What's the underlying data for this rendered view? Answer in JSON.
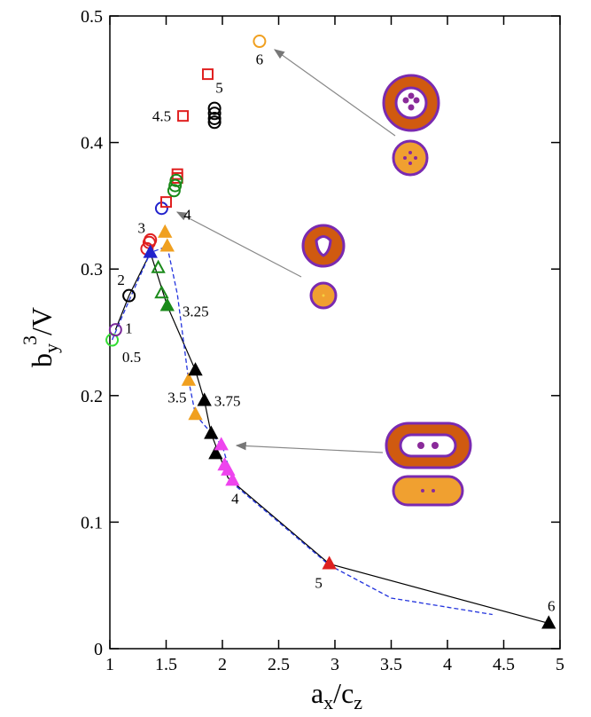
{
  "chart_data": {
    "type": "scatter",
    "xlabel": [
      "a",
      "x",
      "/c",
      "z"
    ],
    "ylabel": [
      "b",
      "y",
      "3",
      "/V"
    ],
    "xlim": [
      1,
      5
    ],
    "ylim": [
      0,
      0.5
    ],
    "xticks": [
      1,
      1.5,
      2,
      2.5,
      3,
      3.5,
      4,
      4.5,
      5
    ],
    "yticks": [
      0,
      0.1,
      0.2,
      0.3,
      0.4,
      0.5
    ],
    "series": [
      {
        "marker": "circle",
        "filled": false,
        "color": "#33dd33",
        "x": [
          1.02
        ],
        "y": [
          0.244
        ],
        "labels": [
          "0.5"
        ]
      },
      {
        "marker": "circle",
        "filled": false,
        "color": "#7a2a9a",
        "x": [
          1.05
        ],
        "y": [
          0.252
        ],
        "labels": [
          "1"
        ]
      },
      {
        "marker": "circle",
        "filled": false,
        "color": "#000000",
        "x": [
          1.17,
          1.93,
          1.93,
          1.93,
          1.93
        ],
        "y": [
          0.279,
          0.427,
          0.423,
          0.419,
          0.416
        ],
        "labels": [
          "2",
          null,
          null,
          null,
          null
        ]
      },
      {
        "marker": "circle",
        "filled": false,
        "color": "#e02020",
        "x": [
          1.33,
          1.35,
          1.36
        ],
        "y": [
          0.316,
          0.321,
          0.323
        ],
        "labels": [
          null,
          null,
          "3"
        ]
      },
      {
        "marker": "circle",
        "filled": false,
        "color": "#2222cc",
        "x": [
          1.46
        ],
        "y": [
          0.348
        ],
        "labels": [
          null
        ]
      },
      {
        "marker": "square",
        "filled": false,
        "color": "#e02020",
        "x": [
          1.5,
          1.6,
          1.6,
          1.65,
          1.87
        ],
        "y": [
          0.353,
          0.372,
          0.375,
          0.421,
          0.454
        ],
        "labels": [
          "4",
          null,
          null,
          "4.5",
          "5"
        ]
      },
      {
        "marker": "circle",
        "filled": false,
        "color": "#1a8a1a",
        "x": [
          1.57,
          1.58,
          1.59
        ],
        "y": [
          0.362,
          0.366,
          0.37
        ],
        "labels": [
          null,
          null,
          null
        ]
      },
      {
        "marker": "circle",
        "filled": false,
        "color": "#f0a020",
        "x": [
          2.33
        ],
        "y": [
          0.48
        ],
        "labels": [
          "6"
        ]
      },
      {
        "marker": "triangle",
        "filled": true,
        "color": "#2222cc",
        "x": [
          1.36
        ],
        "y": [
          0.313
        ],
        "labels": [
          null
        ]
      },
      {
        "marker": "triangle",
        "filled": true,
        "color": "#f0a020",
        "x": [
          1.49,
          1.51,
          1.7,
          1.76
        ],
        "y": [
          0.329,
          0.318,
          0.212,
          0.185
        ],
        "labels": [
          null,
          null,
          "3.5",
          null
        ]
      },
      {
        "marker": "triangle",
        "filled": false,
        "color": "#1a8a1a",
        "x": [
          1.43,
          1.46
        ],
        "y": [
          0.301,
          0.281
        ],
        "labels": [
          null,
          null
        ]
      },
      {
        "marker": "triangle",
        "filled": true,
        "color": "#1a8a1a",
        "x": [
          1.51
        ],
        "y": [
          0.271
        ],
        "labels": [
          "3.25"
        ]
      },
      {
        "marker": "triangle",
        "filled": true,
        "color": "#000000",
        "x": [
          1.76,
          1.84,
          1.9,
          1.94,
          4.9
        ],
        "y": [
          0.22,
          0.196,
          0.17,
          0.154,
          0.02
        ],
        "labels": [
          null,
          "3.75",
          null,
          null,
          "6"
        ]
      },
      {
        "marker": "triangle",
        "filled": true,
        "color": "#ee44ee",
        "x": [
          1.99,
          2.02,
          2.05,
          2.09
        ],
        "y": [
          0.161,
          0.145,
          0.141,
          0.133
        ],
        "labels": [
          null,
          null,
          null,
          "4"
        ]
      },
      {
        "marker": "triangle",
        "filled": true,
        "color": "#dd2020",
        "x": [
          2.95
        ],
        "y": [
          0.067
        ],
        "labels": [
          "5"
        ]
      },
      {
        "marker": "line",
        "dashed": false,
        "color": "#000000",
        "x": [
          1.05,
          1.17,
          1.36,
          1.51,
          1.76,
          1.84,
          1.9,
          2.05,
          2.95,
          4.9
        ],
        "y": [
          0.252,
          0.279,
          0.313,
          0.271,
          0.22,
          0.196,
          0.17,
          0.135,
          0.067,
          0.02
        ]
      },
      {
        "marker": "line",
        "dashed": true,
        "color": "#2233dd",
        "x": [
          1.02,
          1.17,
          1.36,
          1.51,
          1.6,
          1.7,
          1.76,
          2.0,
          2.1,
          2.5,
          2.95,
          3.5,
          4.4
        ],
        "y": [
          0.244,
          0.275,
          0.313,
          0.318,
          0.28,
          0.212,
          0.185,
          0.16,
          0.13,
          0.1,
          0.066,
          0.04,
          0.027
        ]
      }
    ]
  }
}
